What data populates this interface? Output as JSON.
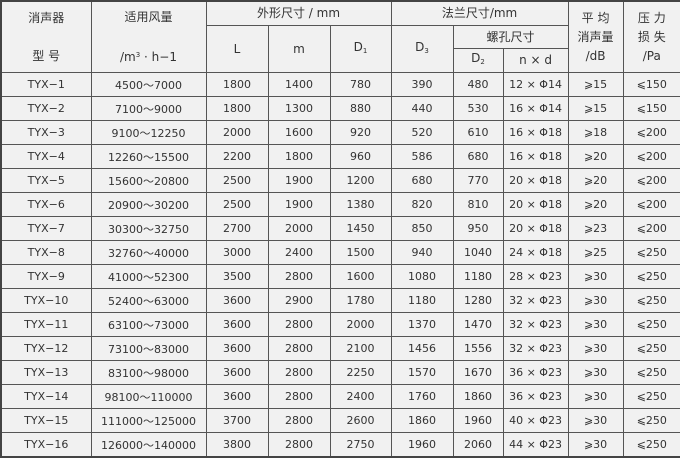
{
  "headers": {
    "model_line1": "消声器",
    "model_line2": "型 号",
    "airflow_line1": "适用风量",
    "airflow_unit_pre": "/m",
    "airflow_unit_sup": "3",
    "airflow_unit_post": " · h−1",
    "outer_dims": "外形尺寸 / mm",
    "L": "L",
    "m": "m",
    "D1_base": "D",
    "D1_sub": "1",
    "flange_dims": "法兰尺寸/mm",
    "D3_base": "D",
    "D3_sub": "3",
    "bolt_holes": "螺孔尺寸",
    "D2_base": "D",
    "D2_sub": "2",
    "nxd": "n × d",
    "noise_line1": "平 均",
    "noise_line2": "消声量",
    "noise_unit": "/dB",
    "pressure_line1": "压 力",
    "pressure_line2": "损 失",
    "pressure_unit": "/Pa"
  },
  "rows": [
    [
      "TYX−1",
      "4500～7000",
      "1800",
      "1400",
      "780",
      "390",
      "480",
      "12 × Φ14",
      "⩾15",
      "⩽150"
    ],
    [
      "TYX−2",
      "7100～9000",
      "1800",
      "1300",
      "880",
      "440",
      "530",
      "16 × Φ14",
      "⩾15",
      "⩽150"
    ],
    [
      "TYX−3",
      "9100～12250",
      "2000",
      "1600",
      "920",
      "520",
      "610",
      "16 × Φ18",
      "⩾18",
      "⩽200"
    ],
    [
      "TYX−4",
      "12260～15500",
      "2200",
      "1800",
      "960",
      "586",
      "680",
      "16 × Φ18",
      "⩾20",
      "⩽200"
    ],
    [
      "TYX−5",
      "15600～20800",
      "2500",
      "1900",
      "1200",
      "680",
      "770",
      "20 × Φ18",
      "⩾20",
      "⩽200"
    ],
    [
      "TYX−6",
      "20900～30200",
      "2500",
      "1900",
      "1380",
      "820",
      "810",
      "20 × Φ18",
      "⩾20",
      "⩽200"
    ],
    [
      "TYX−7",
      "30300～32750",
      "2700",
      "2000",
      "1450",
      "850",
      "950",
      "20 × Φ18",
      "⩾23",
      "⩽200"
    ],
    [
      "TYX−8",
      "32760～40000",
      "3000",
      "2400",
      "1500",
      "940",
      "1040",
      "24 × Φ18",
      "⩾25",
      "⩽250"
    ],
    [
      "TYX−9",
      "41000～52300",
      "3500",
      "2800",
      "1600",
      "1080",
      "1180",
      "28 × Φ23",
      "⩾30",
      "⩽250"
    ],
    [
      "TYX−10",
      "52400～63000",
      "3600",
      "2900",
      "1780",
      "1180",
      "1280",
      "32 × Φ23",
      "⩾30",
      "⩽250"
    ],
    [
      "TYX−11",
      "63100～73000",
      "3600",
      "2800",
      "2000",
      "1370",
      "1470",
      "32 × Φ23",
      "⩾30",
      "⩽250"
    ],
    [
      "TYX−12",
      "73100～83000",
      "3600",
      "2800",
      "2100",
      "1456",
      "1556",
      "32 × Φ23",
      "⩾30",
      "⩽250"
    ],
    [
      "TYX−13",
      "83100～98000",
      "3600",
      "2800",
      "2250",
      "1570",
      "1670",
      "36 × Φ23",
      "⩾30",
      "⩽250"
    ],
    [
      "TYX−14",
      "98100～110000",
      "3600",
      "2800",
      "2400",
      "1760",
      "1860",
      "36 × Φ23",
      "⩾30",
      "⩽250"
    ],
    [
      "TYX−15",
      "111000～125000",
      "3700",
      "2800",
      "2600",
      "1860",
      "1960",
      "40 × Φ23",
      "⩾30",
      "⩽250"
    ],
    [
      "TYX−16",
      "126000～140000",
      "3800",
      "2800",
      "2750",
      "1960",
      "2060",
      "44 × Φ23",
      "⩾30",
      "⩽250"
    ]
  ]
}
